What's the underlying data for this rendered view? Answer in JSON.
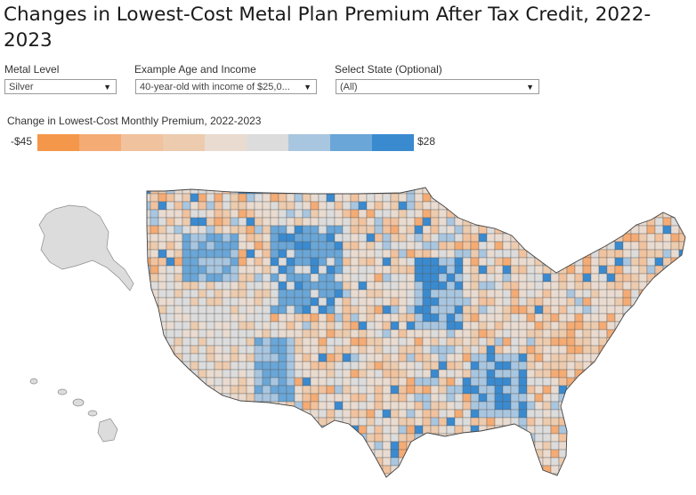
{
  "title": "Changes in Lowest-Cost Metal Plan Premium After Tax Credit, 2022-2023",
  "controls": {
    "metal": {
      "label": "Metal Level",
      "value": "Silver"
    },
    "age": {
      "label": "Example Age and Income",
      "value": "40-year-old with income of $25,0..."
    },
    "state": {
      "label": "Select State (Optional)",
      "value": "(All)"
    }
  },
  "legend": {
    "title": "Change in Lowest-Cost Monthly Premium, 2022-2023",
    "min_label": "-$45",
    "max_label": "$28",
    "bins": [
      {
        "color": "#f5974a",
        "range": [
          -45,
          -37
        ]
      },
      {
        "color": "#f4ab74",
        "range": [
          -37,
          -29
        ]
      },
      {
        "color": "#f1c29e",
        "range": [
          -29,
          -21
        ]
      },
      {
        "color": "#eccbae",
        "range": [
          -21,
          -13
        ]
      },
      {
        "color": "#e9dbd0",
        "range": [
          -13,
          -5
        ]
      },
      {
        "color": "#dcdcdc",
        "range": [
          -5,
          3
        ]
      },
      {
        "color": "#a9c6e0",
        "range": [
          3,
          11
        ]
      },
      {
        "color": "#6aa6d7",
        "range": [
          11,
          19
        ]
      },
      {
        "color": "#3a8ad0",
        "range": [
          19,
          28
        ]
      }
    ]
  },
  "colors": {
    "land": "#e3e3e3",
    "border": "#555555",
    "orange": "#f3b98c",
    "light_orange": "#ecd2bd",
    "blue": "#4d93d2",
    "light_blue": "#a8c6e1"
  }
}
